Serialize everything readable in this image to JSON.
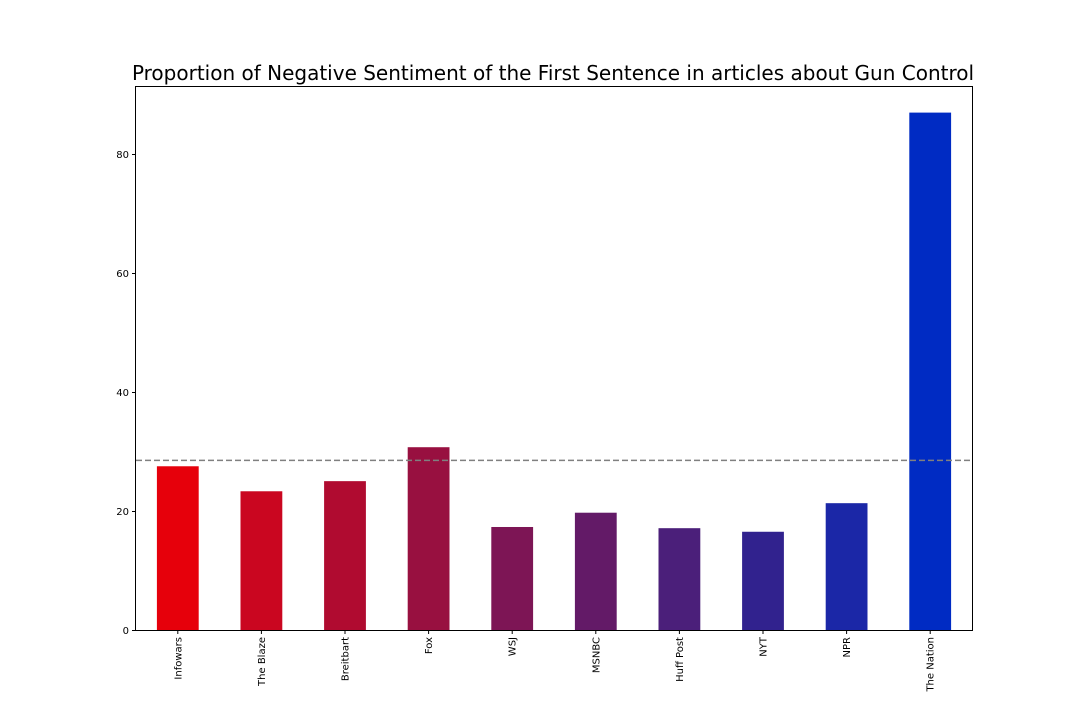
{
  "chart_data": {
    "type": "bar",
    "title": "Proportion of Negative Sentiment of the First Sentence in articles about Gun Control",
    "xlabel": "",
    "ylabel": "",
    "categories": [
      "Infowars",
      "The Blaze",
      "Breitbart",
      "Fox",
      "WSJ",
      "MSNBC",
      "Huff Post",
      "NYT",
      "NPR",
      "The Nation"
    ],
    "values": [
      27.5,
      23.3,
      25.0,
      30.7,
      17.3,
      19.7,
      17.1,
      16.5,
      21.3,
      86.9
    ],
    "colors": [
      "#e6000b",
      "#ca0620",
      "#b00b30",
      "#981040",
      "#7d1555",
      "#631a67",
      "#4b1f7a",
      "#31228e",
      "#1b27a7",
      "#002bc3"
    ],
    "reference_line": {
      "value": 28.5,
      "style": "dashed",
      "color": "#808080"
    },
    "ylim": [
      0,
      91.2
    ],
    "yticks": [
      0,
      20,
      40,
      60,
      80
    ],
    "x_tick_rotation": "vertical",
    "grid": false,
    "legend": "none"
  }
}
